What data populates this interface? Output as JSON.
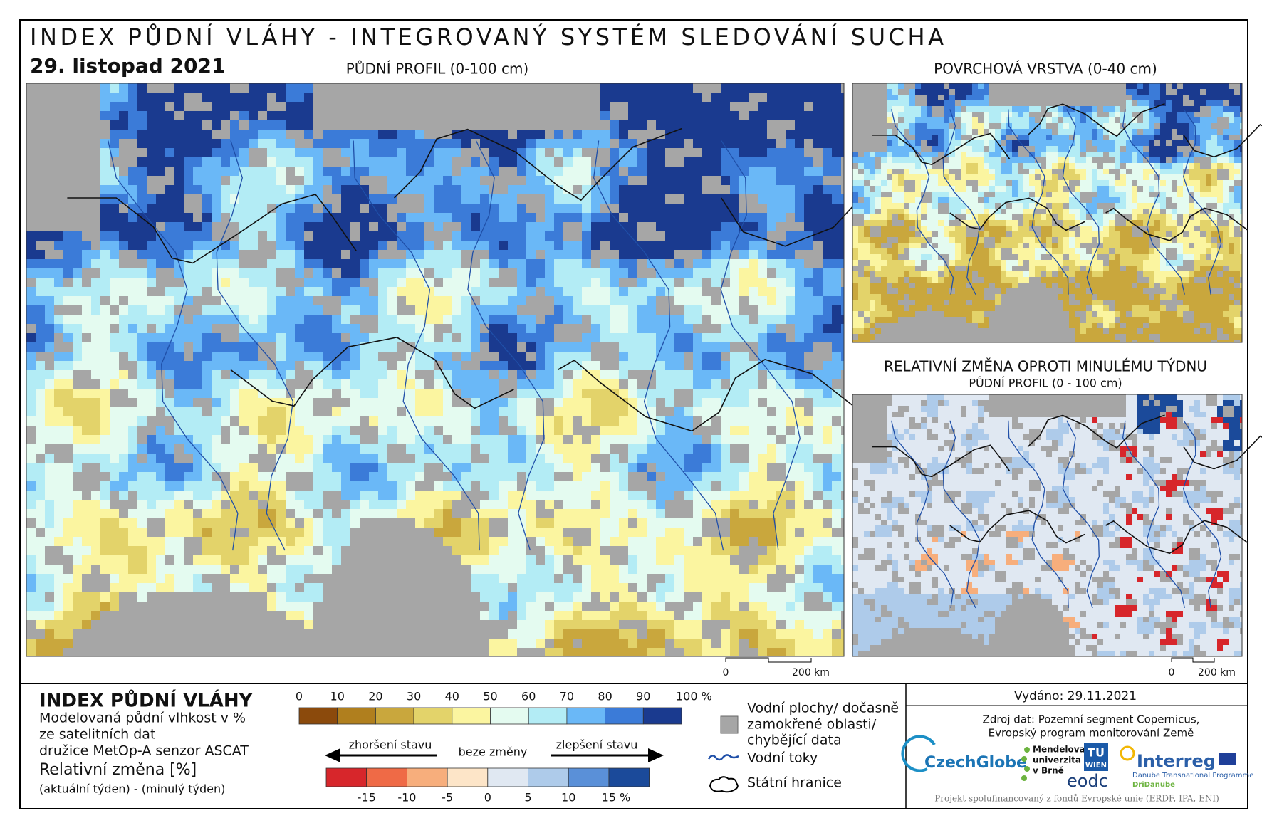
{
  "header": {
    "title": "INDEX PŮDNÍ VLÁHY - INTEGROVANÝ SYSTÉM SLEDOVÁNÍ SUCHA",
    "date": "29. listopad 2021"
  },
  "maps": {
    "main_title": "PŮDNÍ PROFIL (0-100 cm)",
    "surface_title": "POVRCHOVÁ VRSTVA (0-40 cm)",
    "change_title": "RELATIVNÍ ZMĚNA OPROTI MINULÉMU TÝDNU",
    "change_subtitle": "PŮDNÍ PROFIL (0 - 100 cm)",
    "scalebar_main": [
      "0",
      "200 km"
    ],
    "scalebar_small": [
      "0",
      "200 km"
    ]
  },
  "legend": {
    "title": "INDEX PŮDNÍ VLÁHY",
    "description": [
      "Modelovaná půdní vlhkost v %",
      "ze satelitních dat",
      "družice MetOp-A senzor ASCAT"
    ],
    "change_title": "Relativní změna [%]",
    "change_description": "(aktuální týden) - (minulý týden)",
    "moisture_scale": {
      "labels": [
        "0",
        "10",
        "20",
        "30",
        "40",
        "50",
        "60",
        "70",
        "80",
        "90",
        "100 %"
      ],
      "colors": [
        "#8b4a0c",
        "#b07f1e",
        "#c9a73d",
        "#e3d36a",
        "#fbf5a0",
        "#e4fbf0",
        "#b3ecf5",
        "#6ab8f7",
        "#3b7bd8",
        "#1a3a8f"
      ]
    },
    "change_scale": {
      "worse": "zhoršení stavu",
      "none": "beze změny",
      "better": "zlepšení stavu",
      "labels": [
        "-15",
        "-10",
        "-5",
        "0",
        "5",
        "10",
        "15 %"
      ],
      "colors": [
        "#d7262b",
        "#ef6a46",
        "#f7ae7c",
        "#fde5c8",
        "#e0e8f2",
        "#aecbea",
        "#5a90d8",
        "#1b4a9a"
      ]
    },
    "symbols": {
      "water": [
        "Vodní plochy/ dočasně",
        "zamokřené oblasti/",
        "chybějící data"
      ],
      "water_color": "#a6a6a6",
      "rivers": "Vodní toky",
      "borders": "Státní hranice"
    }
  },
  "footer": {
    "issued": "Vydáno: 29.11.2021",
    "source": [
      "Zdroj dat: Pozemní segment Copernicus,",
      "Evropský program monitorování Země"
    ],
    "logos": {
      "czechglobe": "CzechGlobe",
      "mendelu": [
        "Mendelova",
        "univerzita",
        "v Brně"
      ],
      "tu": [
        "TU",
        "WIEN"
      ],
      "eodc": "eodc",
      "interreg": "Interreg",
      "programme": "Danube Transnational Programme",
      "project": "DriDanube"
    },
    "funding": "Projekt spolufinancovaný z fondů Evropské unie (ERDF, IPA, ENI)"
  }
}
